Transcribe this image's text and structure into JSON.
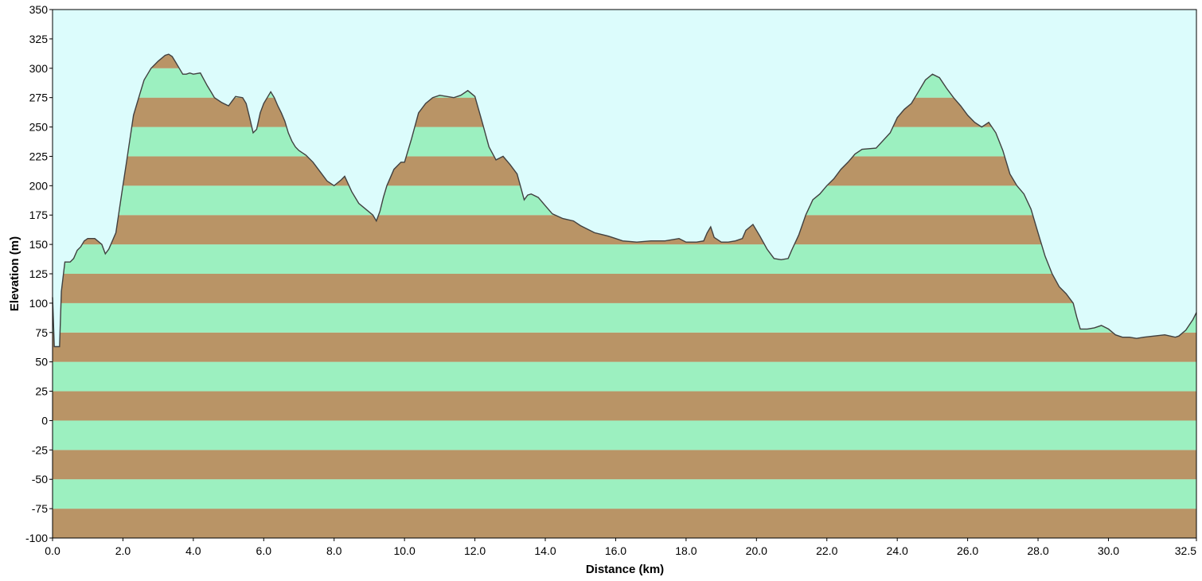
{
  "chart_data": {
    "type": "area",
    "title": "",
    "xlabel": "Distance   (km)",
    "ylabel": "Elevation (m)",
    "xlim": [
      0,
      32.5
    ],
    "ylim": [
      -100,
      350
    ],
    "x_ticks": [
      0,
      2,
      4,
      6,
      8,
      10,
      12,
      14,
      16,
      18,
      20,
      22,
      24,
      26,
      28,
      30,
      32.5
    ],
    "x_tick_labels": [
      "0.0",
      "2.0",
      "4.0",
      "6.0",
      "8.0",
      "10.0",
      "12.0",
      "14.0",
      "16.0",
      "18.0",
      "20.0",
      "22.0",
      "24.0",
      "26.0",
      "28.0",
      "30.0",
      "32.5"
    ],
    "y_ticks": [
      350,
      325,
      300,
      275,
      250,
      225,
      200,
      175,
      150,
      125,
      100,
      75,
      50,
      25,
      0,
      -25,
      -50,
      -75,
      -100
    ],
    "y_tick_labels": [
      "350",
      "325",
      "300",
      "275",
      "250",
      "225",
      "200",
      "175",
      "150",
      "125",
      "100",
      "75",
      "50",
      "25",
      "0",
      "-25",
      "-50",
      "-75",
      "-100"
    ],
    "band_size": 25,
    "colors": {
      "plot_background": "#dcfcfc",
      "band_light": "#9cf0c0",
      "band_dark": "#b99466",
      "line": "#404040"
    },
    "series": [
      {
        "x": [
          0,
          0.05,
          0.1,
          0.2,
          0.25,
          0.35,
          0.5,
          0.6,
          0.7,
          0.8,
          0.9,
          1.0,
          1.2,
          1.4,
          1.5,
          1.6,
          1.8,
          1.9,
          2.0,
          2.1,
          2.2,
          2.3,
          2.4,
          2.5,
          2.6,
          2.7,
          2.8,
          2.9,
          3.0,
          3.2,
          3.3,
          3.4,
          3.5,
          3.6,
          3.7,
          3.8,
          3.9,
          4.0,
          4.2,
          4.4,
          4.5,
          4.6,
          4.8,
          5.0,
          5.1,
          5.2,
          5.4,
          5.5,
          5.6,
          5.7,
          5.8,
          5.9,
          6.0,
          6.1,
          6.2,
          6.3,
          6.4,
          6.5,
          6.6,
          6.7,
          6.8,
          6.9,
          7.0,
          7.2,
          7.4,
          7.6,
          7.8,
          8.0,
          8.2,
          8.3,
          8.5,
          8.7,
          8.9,
          9.1,
          9.2,
          9.3,
          9.4,
          9.5,
          9.7,
          9.9,
          10.0,
          10.2,
          10.4,
          10.6,
          10.8,
          11.0,
          11.2,
          11.4,
          11.6,
          11.8,
          12.0,
          12.2,
          12.4,
          12.6,
          12.8,
          13.0,
          13.2,
          13.4,
          13.5,
          13.6,
          13.8,
          14.0,
          14.2,
          14.5,
          14.8,
          15.0,
          15.4,
          15.8,
          16.0,
          16.2,
          16.6,
          17.0,
          17.4,
          17.8,
          18.0,
          18.3,
          18.5,
          18.6,
          18.7,
          18.8,
          19.0,
          19.2,
          19.4,
          19.6,
          19.7,
          19.9,
          20.1,
          20.3,
          20.5,
          20.7,
          20.9,
          21.0,
          21.2,
          21.4,
          21.6,
          21.8,
          22.0,
          22.2,
          22.4,
          22.6,
          22.8,
          23.0,
          23.4,
          23.8,
          24.0,
          24.2,
          24.4,
          24.6,
          24.8,
          25.0,
          25.2,
          25.4,
          25.6,
          25.8,
          26.0,
          26.2,
          26.4,
          26.6,
          26.8,
          27.0,
          27.2,
          27.4,
          27.6,
          27.8,
          28.0,
          28.2,
          28.4,
          28.6,
          28.8,
          29.0,
          29.1,
          29.2,
          29.4,
          29.6,
          29.8,
          30.0,
          30.2,
          30.4,
          30.6,
          30.8,
          31.0,
          31.3,
          31.6,
          31.9,
          32.0,
          32.2,
          32.4,
          32.5
        ],
        "y": [
          105,
          63,
          63,
          63,
          110,
          135,
          135,
          138,
          145,
          148,
          153,
          155,
          155,
          150,
          142,
          146,
          160,
          180,
          200,
          220,
          240,
          260,
          270,
          280,
          290,
          295,
          300,
          303,
          306,
          311,
          312,
          310,
          305,
          300,
          295,
          295,
          296,
          295,
          296,
          285,
          280,
          275,
          271,
          268,
          272,
          276,
          275,
          270,
          258,
          245,
          248,
          262,
          270,
          275,
          280,
          275,
          268,
          262,
          255,
          245,
          238,
          233,
          230,
          226,
          220,
          212,
          204,
          200,
          205,
          208,
          195,
          185,
          180,
          175,
          170,
          178,
          190,
          200,
          214,
          220,
          220,
          240,
          262,
          270,
          275,
          277,
          276,
          275,
          277,
          281,
          276,
          255,
          233,
          222,
          225,
          218,
          210,
          188,
          192,
          193,
          190,
          183,
          176,
          172,
          170,
          166,
          160,
          157,
          155,
          153,
          152,
          153,
          153,
          155,
          152,
          152,
          153,
          160,
          165,
          156,
          152,
          152,
          153,
          155,
          162,
          167,
          157,
          146,
          138,
          137,
          138,
          145,
          158,
          175,
          188,
          193,
          200,
          206,
          214,
          220,
          227,
          231,
          232,
          245,
          258,
          265,
          270,
          280,
          290,
          295,
          292,
          283,
          275,
          268,
          260,
          254,
          250,
          254,
          245,
          230,
          210,
          200,
          193,
          180,
          160,
          140,
          125,
          114,
          108,
          100,
          88,
          78,
          78,
          79,
          81,
          78,
          73,
          71,
          71,
          70,
          71,
          72,
          73,
          71,
          72,
          77,
          86,
          92
        ]
      }
    ]
  }
}
